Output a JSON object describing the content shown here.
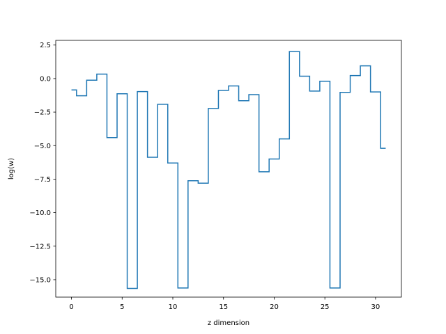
{
  "chart_data": {
    "type": "line",
    "drawstyle": "steps-mid",
    "xlabel": "z dimension",
    "ylabel": "log(w)",
    "xlim": [
      -1.55,
      32.55
    ],
    "ylim": [
      -16.3,
      2.85
    ],
    "xticks": [
      0,
      5,
      10,
      15,
      20,
      25,
      30
    ],
    "yticks": [
      2.5,
      0.0,
      -2.5,
      -5.0,
      -7.5,
      -10.0,
      -12.5,
      -15.0
    ],
    "ytick_labels": [
      "2.5",
      "0.0",
      "−2.5",
      "−5.0",
      "−7.5",
      "−10.0",
      "−12.5",
      "−15.0"
    ],
    "grid": false,
    "series": [
      {
        "color": "#1f77b4",
        "x": [
          0,
          1,
          2,
          3,
          4,
          5,
          6,
          7,
          8,
          9,
          10,
          11,
          12,
          13,
          14,
          15,
          16,
          17,
          18,
          19,
          20,
          21,
          22,
          23,
          24,
          25,
          26,
          27,
          28,
          29,
          30,
          31
        ],
        "y": [
          -0.85,
          -1.28,
          -0.12,
          0.33,
          -4.4,
          -1.13,
          -15.65,
          -0.97,
          -5.87,
          -1.92,
          -6.3,
          -15.62,
          -7.62,
          -7.8,
          -2.23,
          -0.88,
          -0.55,
          -1.65,
          -1.2,
          -6.95,
          -6.0,
          -4.5,
          2.02,
          0.18,
          -0.93,
          -0.2,
          -15.62,
          -1.03,
          0.22,
          0.95,
          -1.0,
          -5.2
        ]
      }
    ]
  }
}
